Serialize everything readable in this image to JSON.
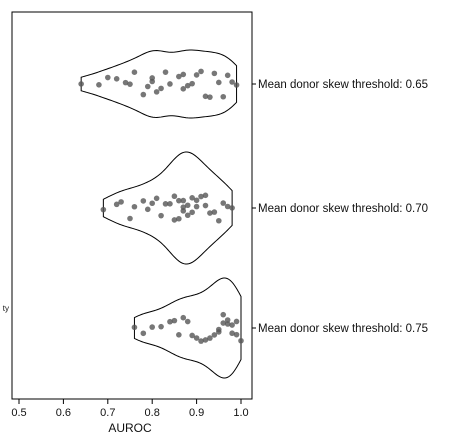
{
  "chart_data": {
    "type": "violin",
    "title": "",
    "xlabel": "AUROC",
    "ylabel": "ty",
    "xlim": [
      0.47,
      1.02
    ],
    "xticks": [
      0.5,
      0.6,
      0.7,
      0.8,
      0.9,
      1.0
    ],
    "xtick_labels": [
      "0.5",
      "0.6",
      "0.7",
      "0.8",
      "0.9",
      "1.0"
    ],
    "orientation": "horizontal",
    "grid": false,
    "colors": {
      "point": "#555555",
      "outline": "#000000"
    },
    "categories": [
      "Mean donor skew threshold: 0.65",
      "Mean donor skew threshold: 0.70",
      "Mean donor skew threshold: 0.75"
    ],
    "series": [
      {
        "category": "Mean donor skew threshold: 0.65",
        "values": [
          0.64,
          0.68,
          0.7,
          0.72,
          0.74,
          0.75,
          0.76,
          0.78,
          0.79,
          0.8,
          0.8,
          0.81,
          0.82,
          0.83,
          0.84,
          0.86,
          0.87,
          0.87,
          0.88,
          0.89,
          0.9,
          0.91,
          0.92,
          0.93,
          0.94,
          0.95,
          0.96,
          0.97,
          0.98,
          0.99
        ]
      },
      {
        "category": "Mean donor skew threshold: 0.70",
        "values": [
          0.69,
          0.72,
          0.73,
          0.75,
          0.76,
          0.78,
          0.79,
          0.8,
          0.81,
          0.82,
          0.83,
          0.84,
          0.85,
          0.85,
          0.86,
          0.86,
          0.87,
          0.87,
          0.87,
          0.88,
          0.88,
          0.89,
          0.89,
          0.9,
          0.9,
          0.91,
          0.92,
          0.92,
          0.93,
          0.94,
          0.95,
          0.96,
          0.97,
          0.98
        ]
      },
      {
        "category": "Mean donor skew threshold: 0.75",
        "values": [
          0.76,
          0.78,
          0.8,
          0.82,
          0.84,
          0.85,
          0.86,
          0.87,
          0.88,
          0.89,
          0.9,
          0.91,
          0.92,
          0.93,
          0.94,
          0.95,
          0.95,
          0.96,
          0.96,
          0.97,
          0.97,
          0.98,
          0.98,
          0.99,
          0.99,
          1.0
        ]
      }
    ]
  }
}
